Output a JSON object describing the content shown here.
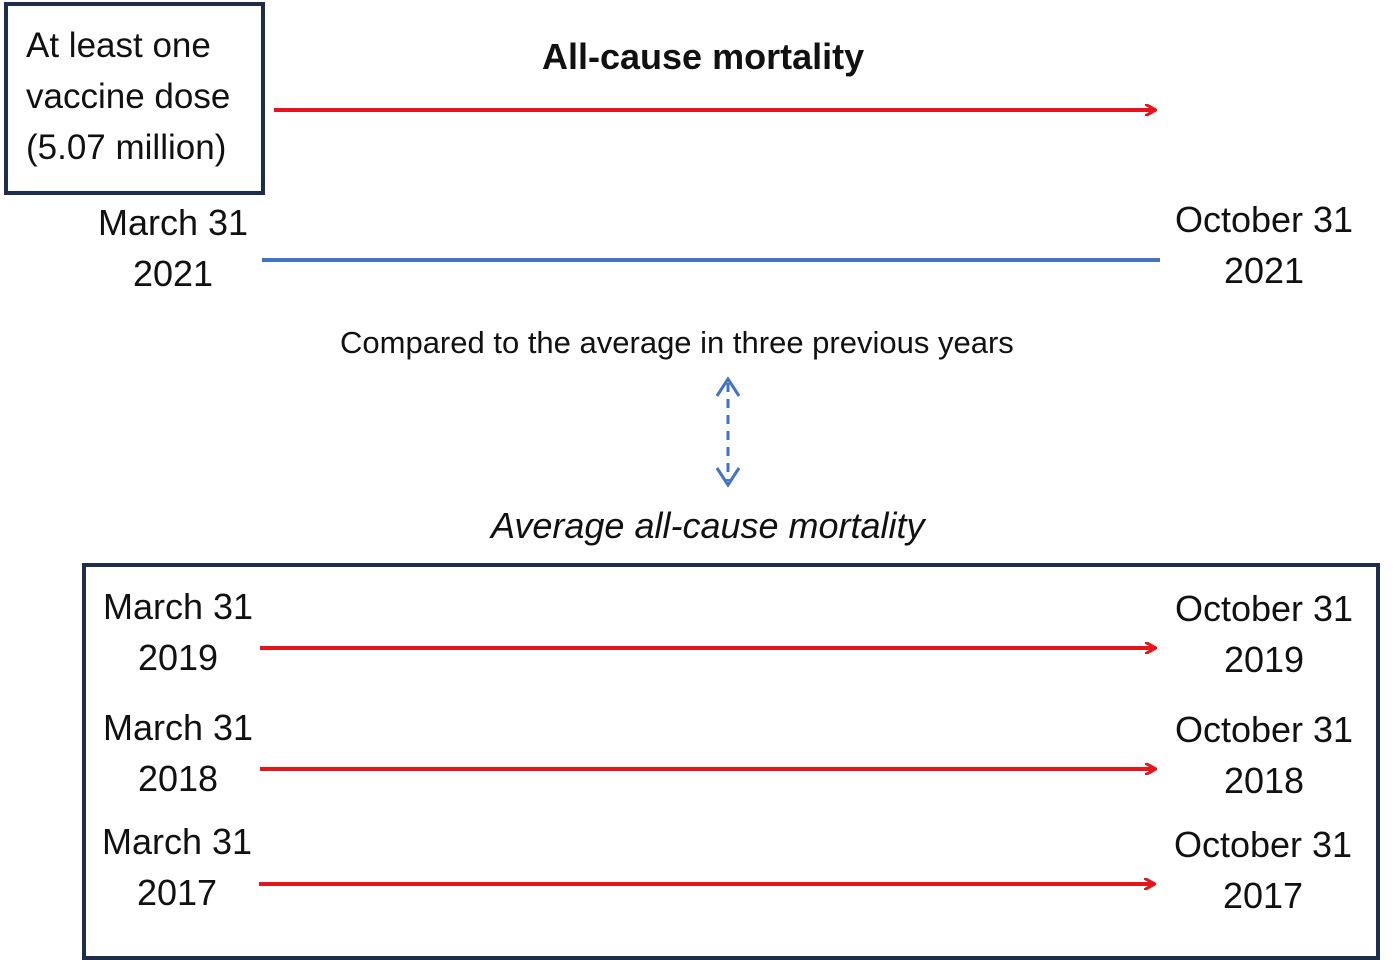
{
  "exposure": {
    "lines": [
      "At least one",
      "vaccine dose",
      "(5.07 million)"
    ],
    "outcome_title": "All-cause mortality",
    "start_date": [
      "March 31",
      "2021"
    ],
    "end_date": [
      "October 31",
      "2021"
    ]
  },
  "comparison_note": "Compared to the average in three previous years",
  "reference": {
    "title": "Average all-cause mortality",
    "periods": [
      {
        "start": [
          "March 31",
          "2019"
        ],
        "end": [
          "October 31",
          "2019"
        ]
      },
      {
        "start": [
          "March 31",
          "2018"
        ],
        "end": [
          "October 31",
          "2018"
        ]
      },
      {
        "start": [
          "March 31",
          "2017"
        ],
        "end": [
          "October 31",
          "2017"
        ]
      }
    ]
  },
  "colors": {
    "arrow_red": "#e8141c",
    "timeline_blue": "#4472c4",
    "box_border": "#1f2d4d",
    "dashed_arrow": "#4472c4"
  }
}
